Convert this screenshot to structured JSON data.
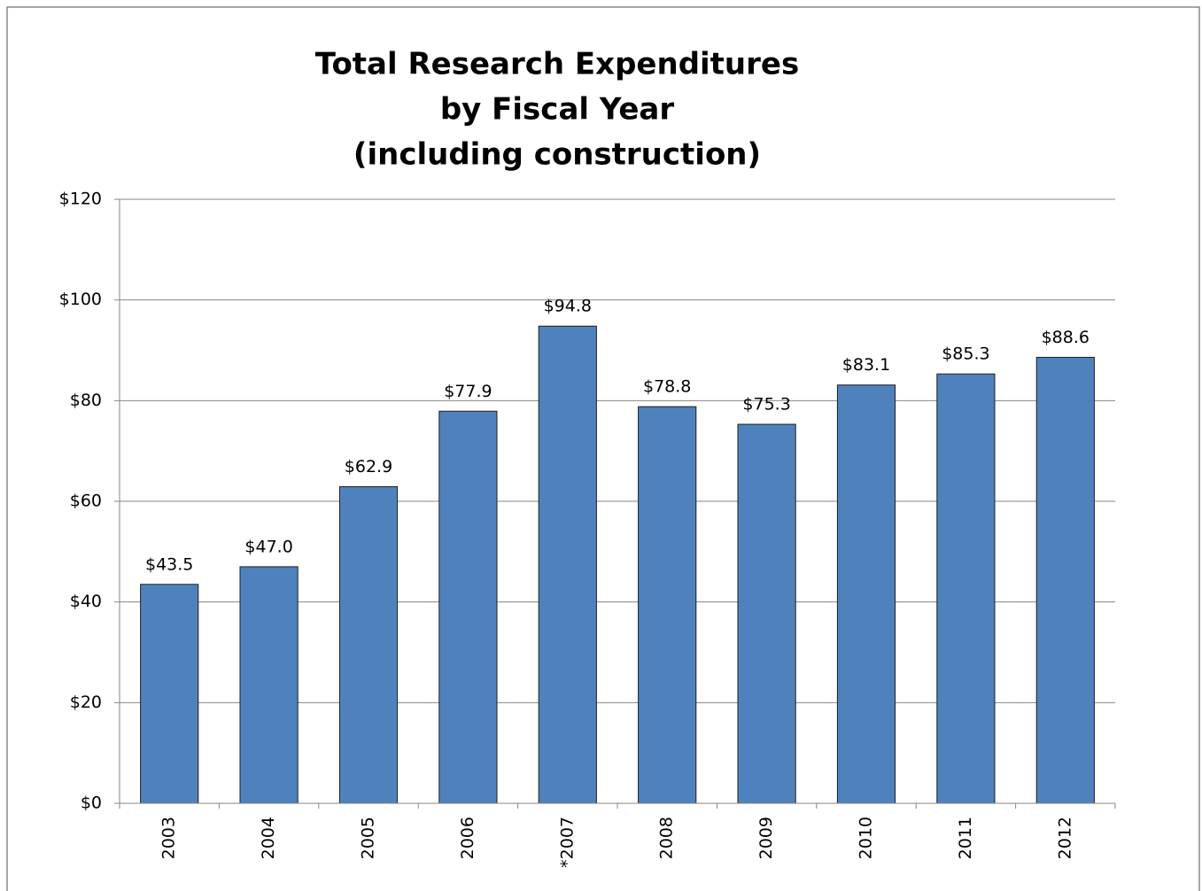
{
  "chart_data": {
    "type": "bar",
    "title": [
      "Total Research Expenditures",
      "by Fiscal Year",
      "(including construction)"
    ],
    "categories": [
      "2003",
      "2004",
      "2005",
      "2006",
      "*2007",
      "2008",
      "2009",
      "2010",
      "2011",
      "2012"
    ],
    "values": [
      43.5,
      47.0,
      62.9,
      77.9,
      94.8,
      78.8,
      75.3,
      83.1,
      85.3,
      88.6
    ],
    "value_labels": [
      "$43.5",
      "$47.0",
      "$62.9",
      "$77.9",
      "$94.8",
      "$78.8",
      "$75.3",
      "$83.1",
      "$85.3",
      "$88.6"
    ],
    "color": "#4f81bd",
    "ylim": [
      0,
      120
    ],
    "yticks": [
      {
        "value": 0,
        "label": "$0"
      },
      {
        "value": 20,
        "label": "$20"
      },
      {
        "value": 40,
        "label": "$40"
      },
      {
        "value": 60,
        "label": "$60"
      },
      {
        "value": 80,
        "label": "$80"
      },
      {
        "value": 100,
        "label": "$100"
      },
      {
        "value": 120,
        "label": "$120"
      }
    ],
    "grid": true
  }
}
